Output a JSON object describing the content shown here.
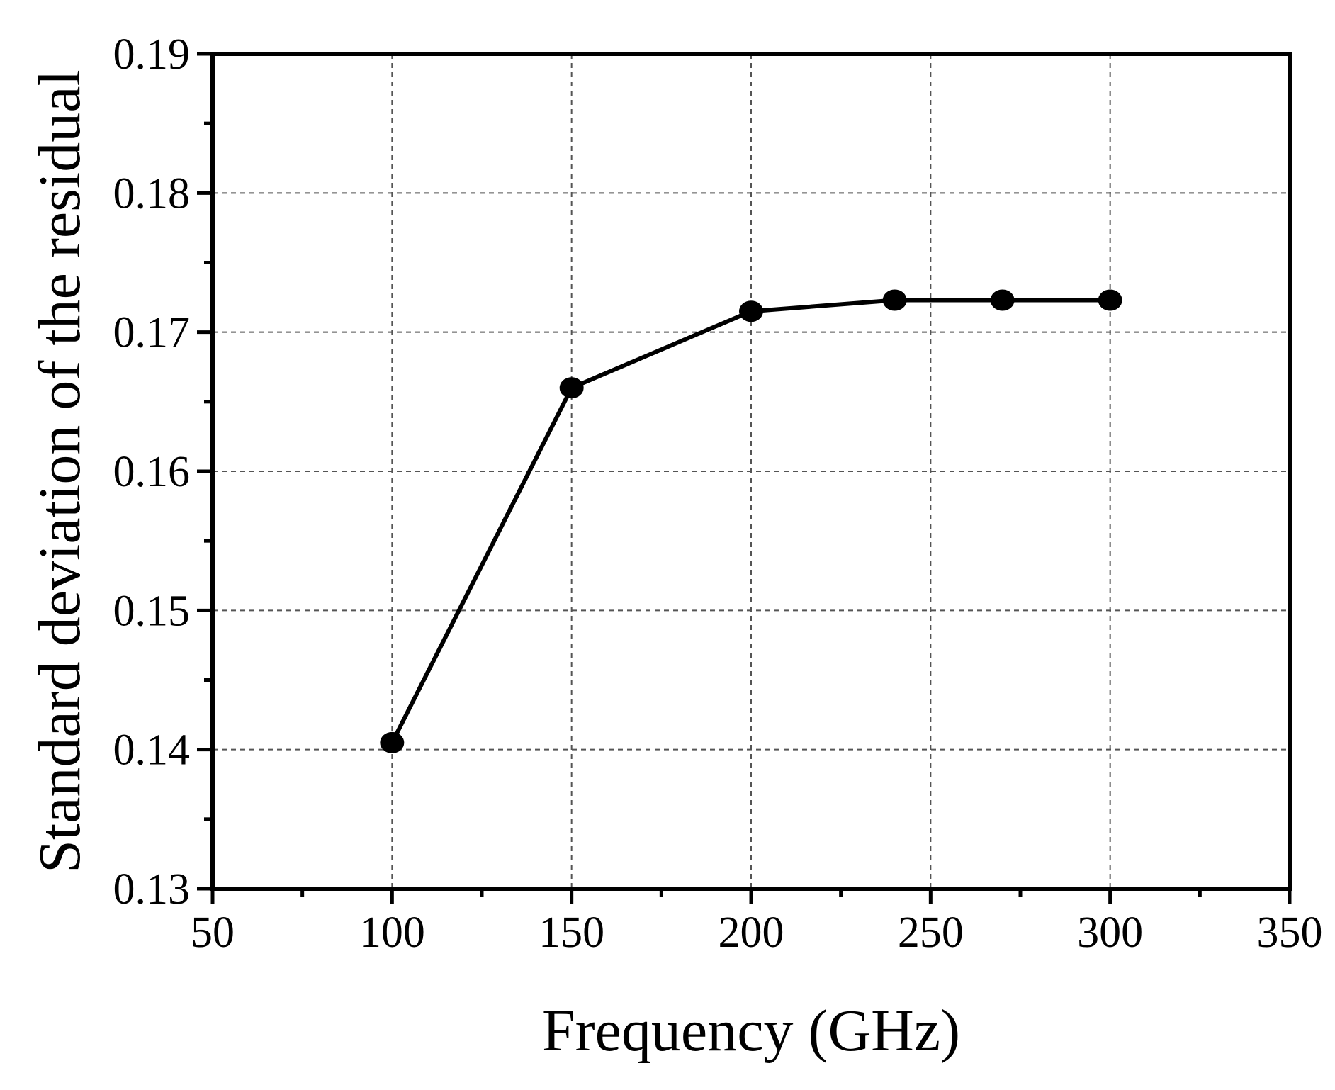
{
  "chart_data": {
    "type": "line",
    "title": "",
    "xlabel": "Frequency (GHz)",
    "ylabel": "Standard deviation of the residual",
    "xlim": [
      50,
      350
    ],
    "ylim": [
      0.13,
      0.19
    ],
    "x_ticks": [
      50,
      100,
      150,
      200,
      250,
      300,
      350
    ],
    "x_tick_labels": [
      "50",
      "100",
      "150",
      "200",
      "250",
      "300",
      "350"
    ],
    "y_ticks": [
      0.13,
      0.14,
      0.15,
      0.16,
      0.17,
      0.18,
      0.19
    ],
    "y_tick_labels": [
      "0.13",
      "0.14",
      "0.15",
      "0.16",
      "0.17",
      "0.18",
      "0.19"
    ],
    "grid": true,
    "legend": "none",
    "colors": {
      "series": "#000000",
      "axes": "#000000",
      "grid": "#555555"
    },
    "series": [
      {
        "x": [
          100,
          150,
          200,
          240,
          270,
          300
        ],
        "y": [
          0.1405,
          0.166,
          0.1715,
          0.1723,
          0.1723,
          0.1723
        ]
      }
    ]
  }
}
